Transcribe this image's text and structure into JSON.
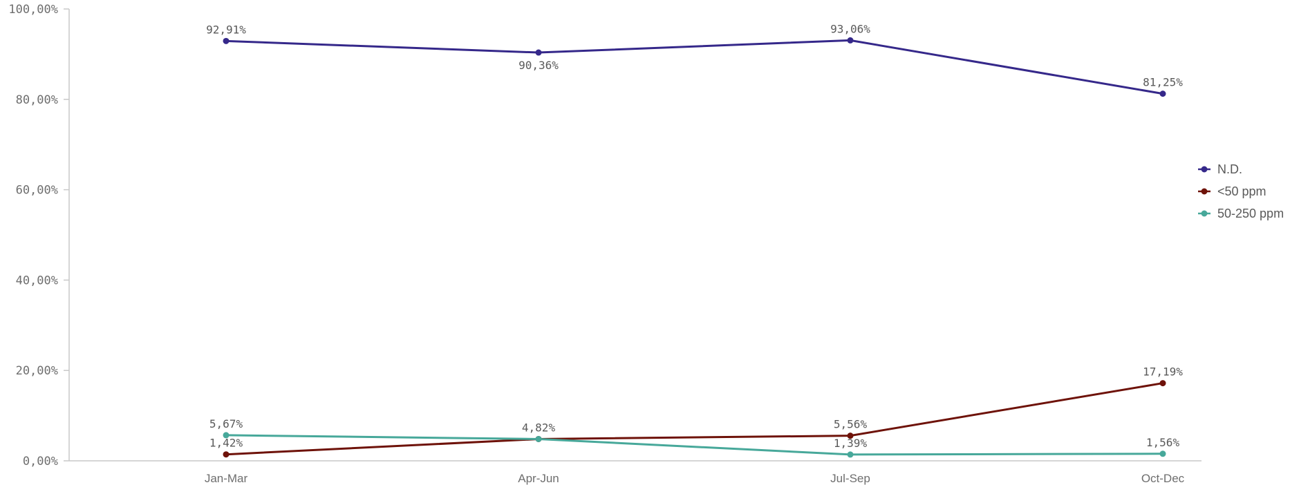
{
  "chart_data": {
    "type": "line",
    "categories": [
      "Jan-Mar",
      "Apr-Jun",
      "Jul-Sep",
      "Oct-Dec"
    ],
    "ylim": [
      0,
      100
    ],
    "y_ticks": [
      {
        "value": 0,
        "label": "0,00%"
      },
      {
        "value": 20,
        "label": "20,00%"
      },
      {
        "value": 40,
        "label": "40,00%"
      },
      {
        "value": 60,
        "label": "60,00%"
      },
      {
        "value": 80,
        "label": "80,00%"
      },
      {
        "value": 100,
        "label": "100,00%"
      }
    ],
    "grid": false,
    "legend_position": "right",
    "series": [
      {
        "name": "N.D.",
        "color": "#35288a",
        "values": [
          92.91,
          90.36,
          93.06,
          81.25
        ],
        "labels": [
          "92,91%",
          "90,36%",
          "93,06%",
          "81,25%"
        ],
        "label_side": [
          "above",
          "below",
          "above",
          "above"
        ]
      },
      {
        "name": "<50 ppm",
        "color": "#6e1209",
        "values": [
          1.42,
          4.82,
          5.56,
          17.19
        ],
        "labels": [
          "1,42%",
          "",
          "5,56%",
          "17,19%"
        ],
        "label_side": [
          "above",
          "above",
          "above",
          "above"
        ]
      },
      {
        "name": "50-250 ppm",
        "color": "#47a89a",
        "values": [
          5.67,
          4.82,
          1.39,
          1.56
        ],
        "labels": [
          "5,67%",
          "4,82%",
          "1,39%",
          "1,56%"
        ],
        "label_side": [
          "above",
          "above",
          "above",
          "above"
        ]
      }
    ]
  }
}
